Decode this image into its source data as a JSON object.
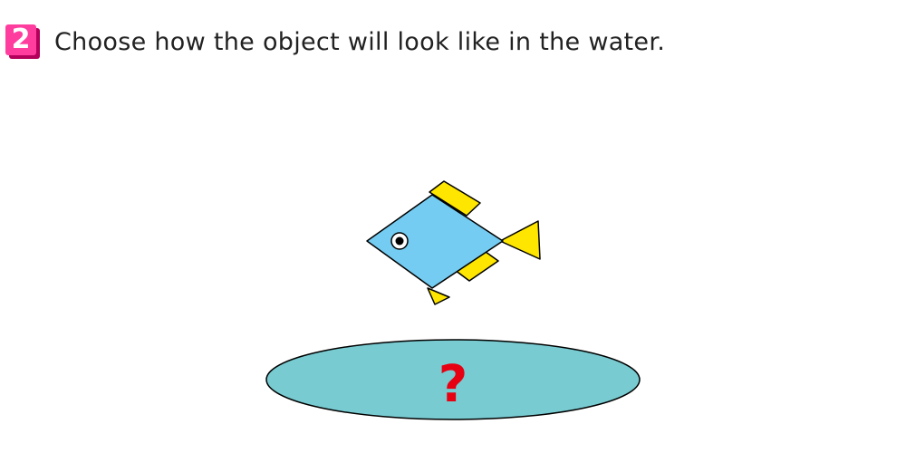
{
  "question": {
    "number": "2",
    "text": "Choose how the object will look like in the water."
  },
  "pond": {
    "mark": "?"
  },
  "colors": {
    "badge": "#ff3d9e",
    "badge_shadow": "#b3005a",
    "fish_body": "#74ccf2",
    "fish_fins": "#ffe600",
    "water": "#78cbd1",
    "question_mark": "#e60012"
  }
}
